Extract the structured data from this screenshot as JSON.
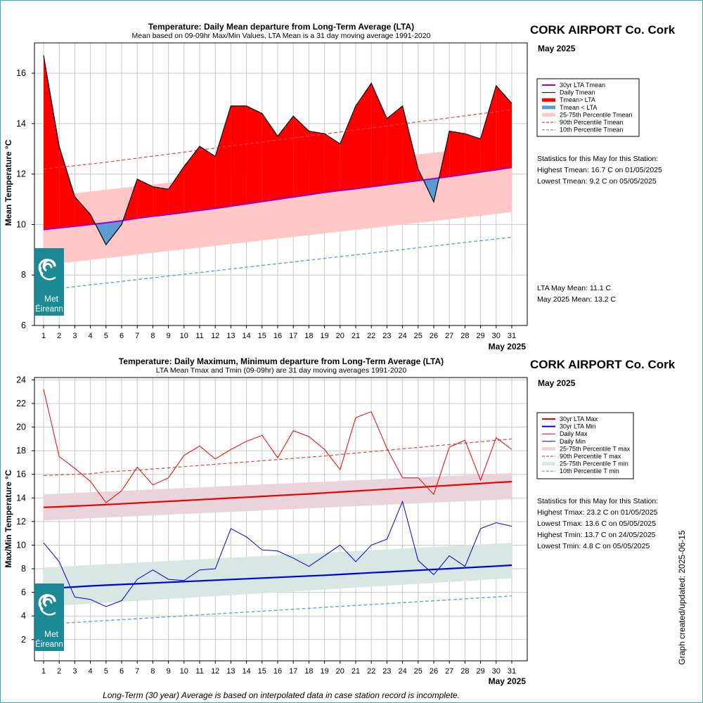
{
  "station": {
    "name": "CORK AIRPORT Co. Cork",
    "month": "May 2025",
    "x_axis_month": "May 2025",
    "footnote": "Long-Term (30 year) Average is based on interpolated data in case station record is incomplete.",
    "created": "Graph created/updated:  2025-06-15",
    "logo_text_1": "Met",
    "logo_text_2": "Éireann"
  },
  "colors": {
    "above": "#ff0000",
    "below": "#5b9bd5",
    "lta_mean": "#a000c0",
    "band_mean": "#ffc6c6",
    "p90": "#d94a4a",
    "p10": "#6a9ee0",
    "band_max": "#ead4dc",
    "band_min": "#d8e6e4",
    "lta_max": "#ee0000",
    "lta_min": "#0000dd",
    "logo": "#1b8a96"
  },
  "chart_data": [
    {
      "type": "line",
      "title": "Temperature: Daily Mean departure from Long-Term Average (LTA)",
      "subtitle": "Mean based on 09-09hr Max/Min Values, LTA Mean is a 31 day moving average 1991-2020",
      "ylabel": "Mean Temperature °C",
      "xlabel": "May 2025",
      "ylim": [
        6,
        17.2
      ],
      "yticks": [
        6,
        8,
        10,
        12,
        14,
        16
      ],
      "x": [
        1,
        2,
        3,
        4,
        5,
        6,
        7,
        8,
        9,
        10,
        11,
        12,
        13,
        14,
        15,
        16,
        17,
        18,
        19,
        20,
        21,
        22,
        23,
        24,
        25,
        26,
        27,
        28,
        29,
        30,
        31
      ],
      "series": [
        {
          "name": "Daily Tmean",
          "values": [
            16.7,
            13.1,
            11.1,
            10.4,
            9.2,
            10.0,
            11.8,
            11.5,
            11.4,
            12.3,
            13.1,
            12.7,
            14.7,
            14.7,
            14.4,
            13.5,
            14.3,
            13.7,
            13.6,
            13.2,
            14.7,
            15.6,
            14.2,
            14.7,
            12.2,
            10.9,
            13.7,
            13.6,
            13.4,
            15.5,
            14.8
          ]
        },
        {
          "name": "30yr LTA Tmean",
          "values": [
            9.8,
            9.87,
            9.93,
            10.0,
            10.07,
            10.15,
            10.25,
            10.33,
            10.4,
            10.48,
            10.56,
            10.64,
            10.73,
            10.82,
            10.91,
            11.0,
            11.09,
            11.18,
            11.27,
            11.35,
            11.42,
            11.5,
            11.58,
            11.66,
            11.74,
            11.82,
            11.9,
            11.99,
            12.08,
            12.17,
            12.26
          ]
        },
        {
          "name": "90th Percentile Tmean",
          "values": [
            12.2,
            12.27,
            12.33,
            12.4,
            12.47,
            12.55,
            12.63,
            12.71,
            12.79,
            12.87,
            12.95,
            13.03,
            13.11,
            13.19,
            13.27,
            13.35,
            13.43,
            13.51,
            13.59,
            13.67,
            13.75,
            13.83,
            13.91,
            13.99,
            14.07,
            14.15,
            14.23,
            14.31,
            14.39,
            14.47,
            14.55
          ]
        },
        {
          "name": "10th Percentile Tmean",
          "values": [
            7.4,
            7.47,
            7.54,
            7.61,
            7.68,
            7.75,
            7.82,
            7.89,
            7.96,
            8.03,
            8.1,
            8.17,
            8.24,
            8.31,
            8.38,
            8.45,
            8.52,
            8.59,
            8.66,
            8.73,
            8.8,
            8.87,
            8.94,
            9.01,
            9.08,
            9.15,
            9.22,
            9.29,
            9.36,
            9.43,
            9.5
          ]
        },
        {
          "name": "25-75th Percentile Tmean",
          "lower": [
            8.4,
            8.46,
            8.53,
            8.6,
            8.67,
            8.74,
            8.81,
            8.88,
            8.95,
            9.02,
            9.09,
            9.16,
            9.23,
            9.3,
            9.37,
            9.44,
            9.51,
            9.58,
            9.65,
            9.72,
            9.79,
            9.86,
            9.93,
            10.0,
            10.07,
            10.14,
            10.21,
            10.28,
            10.35,
            10.42,
            10.5
          ],
          "upper": [
            11.1,
            11.17,
            11.24,
            11.31,
            11.38,
            11.45,
            11.52,
            11.59,
            11.66,
            11.73,
            11.8,
            11.87,
            11.94,
            12.01,
            12.08,
            12.15,
            12.22,
            12.29,
            12.36,
            12.43,
            12.5,
            12.57,
            12.64,
            12.71,
            12.78,
            12.85,
            12.92,
            12.99,
            13.06,
            13.13,
            13.2
          ]
        }
      ],
      "legend": [
        "30yr LTA Tmean",
        "Daily Tmean",
        "Tmean> LTA",
        "Tmean < LTA",
        "25-75th Percentile Tmean",
        "90th Percentile Tmean",
        "10th Percentile Tmean"
      ],
      "legend_position": "right",
      "stats_header": "Statistics for this May for this Station:",
      "stats": [
        "Highest Tmean: 16.7 C on 01/05/2025",
        "Lowest Tmean: 9.2 C on 05/05/2025"
      ],
      "lta_month_mean": "LTA May Mean: 11.1 C",
      "month_mean": "May 2025 Mean: 13.2 C"
    },
    {
      "type": "line",
      "title": "Temperature: Daily Maximum, Minimum departure from Long-Term Average (LTA)",
      "subtitle": "LTA Mean Tmax and Tmin (09-09hr) are 31 day moving averages 1991-2020",
      "ylabel": "Max/Min Temperature °C",
      "xlabel": "May 2025",
      "ylim": [
        0.2,
        24.2
      ],
      "yticks": [
        2,
        4,
        6,
        8,
        10,
        12,
        14,
        16,
        18,
        20,
        22,
        24
      ],
      "x": [
        1,
        2,
        3,
        4,
        5,
        6,
        7,
        8,
        9,
        10,
        11,
        12,
        13,
        14,
        15,
        16,
        17,
        18,
        19,
        20,
        21,
        22,
        23,
        24,
        25,
        26,
        27,
        28,
        29,
        30,
        31
      ],
      "series": [
        {
          "name": "Daily Max",
          "values": [
            23.2,
            17.5,
            16.5,
            15.4,
            13.6,
            14.6,
            16.6,
            15.1,
            15.7,
            17.6,
            18.4,
            17.3,
            18.1,
            18.8,
            19.3,
            17.4,
            19.7,
            19.2,
            18.1,
            16.4,
            20.8,
            21.3,
            18.2,
            15.7,
            15.7,
            14.3,
            18.3,
            18.9,
            15.5,
            19.1,
            18.1
          ]
        },
        {
          "name": "Daily Min",
          "values": [
            10.2,
            8.6,
            5.6,
            5.4,
            4.8,
            5.3,
            7.1,
            7.9,
            7.1,
            7.0,
            7.9,
            8.0,
            11.4,
            10.7,
            9.6,
            9.5,
            8.9,
            8.2,
            9.1,
            10.0,
            8.6,
            10.0,
            10.5,
            13.7,
            8.7,
            7.5,
            9.1,
            8.2,
            11.4,
            11.9,
            11.6
          ]
        },
        {
          "name": "30yr LTA Max",
          "values": [
            13.2,
            13.25,
            13.31,
            13.37,
            13.43,
            13.5,
            13.57,
            13.64,
            13.71,
            13.78,
            13.85,
            13.92,
            13.99,
            14.06,
            14.13,
            14.2,
            14.27,
            14.34,
            14.42,
            14.5,
            14.58,
            14.66,
            14.74,
            14.82,
            14.9,
            14.98,
            15.06,
            15.14,
            15.22,
            15.3,
            15.38
          ]
        },
        {
          "name": "30yr LTA Min",
          "values": [
            6.3,
            6.38,
            6.46,
            6.54,
            6.61,
            6.67,
            6.73,
            6.79,
            6.85,
            6.91,
            6.97,
            7.03,
            7.09,
            7.15,
            7.21,
            7.27,
            7.33,
            7.39,
            7.45,
            7.52,
            7.59,
            7.66,
            7.73,
            7.8,
            7.87,
            7.94,
            8.01,
            8.08,
            8.15,
            8.22,
            8.3
          ]
        },
        {
          "name": "90th Percentile T max",
          "values": [
            15.9,
            15.95,
            16.0,
            16.05,
            16.2,
            16.28,
            16.35,
            16.45,
            16.55,
            16.65,
            16.75,
            16.85,
            16.95,
            17.05,
            17.15,
            17.25,
            17.35,
            17.45,
            17.55,
            17.68,
            17.8,
            17.92,
            18.04,
            18.16,
            18.28,
            18.4,
            18.52,
            18.64,
            18.76,
            18.88,
            19.0
          ]
        },
        {
          "name": "10th Percentile T min",
          "values": [
            3.3,
            3.37,
            3.45,
            3.53,
            3.61,
            3.69,
            3.77,
            3.85,
            3.93,
            4.01,
            4.09,
            4.17,
            4.25,
            4.33,
            4.41,
            4.49,
            4.57,
            4.65,
            4.73,
            4.81,
            4.89,
            4.97,
            5.05,
            5.13,
            5.21,
            5.29,
            5.37,
            5.45,
            5.53,
            5.61,
            5.7
          ]
        },
        {
          "name": "25-75th Percentile T max",
          "lower": [
            12.1,
            12.16,
            12.22,
            12.28,
            12.34,
            12.4,
            12.46,
            12.52,
            12.58,
            12.64,
            12.7,
            12.76,
            12.82,
            12.88,
            12.94,
            13.0,
            13.06,
            13.12,
            13.18,
            13.24,
            13.3,
            13.36,
            13.42,
            13.48,
            13.54,
            13.6,
            13.66,
            13.72,
            13.78,
            13.84,
            13.9
          ],
          "upper": [
            14.3,
            14.36,
            14.42,
            14.48,
            14.54,
            14.6,
            14.66,
            14.72,
            14.78,
            14.84,
            14.9,
            14.96,
            15.02,
            15.08,
            15.14,
            15.2,
            15.26,
            15.32,
            15.38,
            15.44,
            15.5,
            15.56,
            15.62,
            15.68,
            15.74,
            15.8,
            15.86,
            15.92,
            15.98,
            16.04,
            16.1
          ]
        },
        {
          "name": "25-75th Percentile T min",
          "lower": [
            4.8,
            4.88,
            4.96,
            5.04,
            5.12,
            5.2,
            5.28,
            5.36,
            5.44,
            5.52,
            5.6,
            5.68,
            5.76,
            5.84,
            5.92,
            6.0,
            6.08,
            6.16,
            6.24,
            6.32,
            6.4,
            6.48,
            6.56,
            6.64,
            6.72,
            6.8,
            6.88,
            6.96,
            7.04,
            7.12,
            7.2
          ],
          "upper": [
            8.1,
            8.17,
            8.24,
            8.31,
            8.38,
            8.45,
            8.52,
            8.59,
            8.66,
            8.73,
            8.8,
            8.87,
            8.94,
            9.01,
            9.08,
            9.15,
            9.22,
            9.29,
            9.36,
            9.43,
            9.5,
            9.57,
            9.64,
            9.71,
            9.78,
            9.85,
            9.92,
            9.99,
            10.06,
            10.13,
            10.2
          ]
        }
      ],
      "legend": [
        "30yr LTA Max",
        "30yr LTA Min",
        "Daily Max",
        "Daily Min",
        "25-75th Percentile T max",
        "90th Percentile T max",
        "25-75th Percentile T min",
        "10th Percentile T min"
      ],
      "legend_position": "right",
      "stats_header": "Statistics for this May for this Station:",
      "stats": [
        "Highest Tmax: 23.2 C on 01/05/2025",
        "Lowest Tmax: 13.6 C on 05/05/2025",
        "Highest Tmin: 13.7 C on 24/05/2025",
        "Lowest Tmin: 4.8 C on 05/05/2025"
      ]
    }
  ]
}
